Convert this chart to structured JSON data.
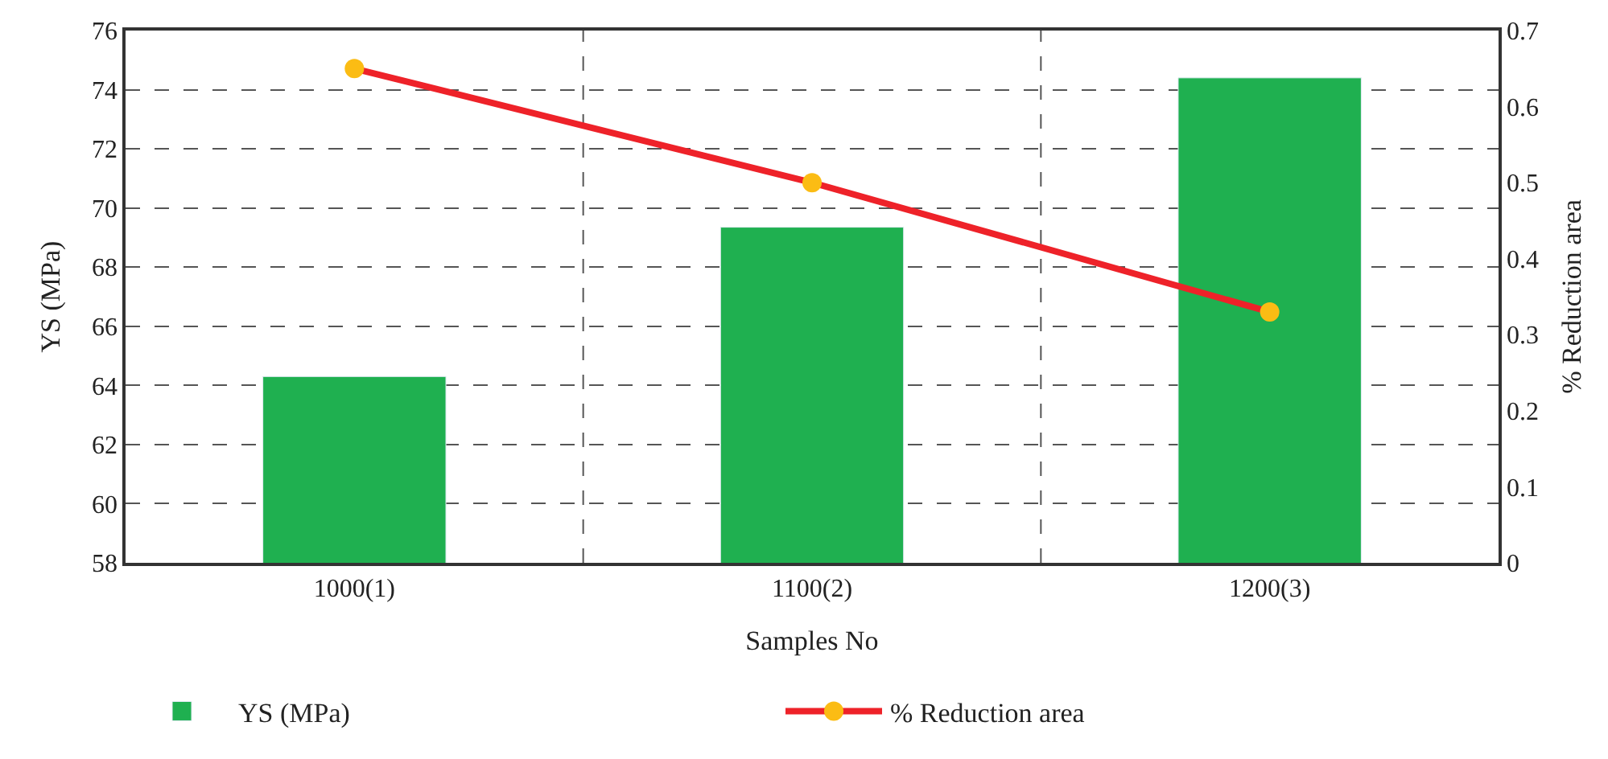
{
  "chart_data": {
    "type": "bar",
    "xlabel": "Samples No",
    "ylabel": "YS (MPa)",
    "y2label": "% Reduction area",
    "categories": [
      "1000(1)",
      "1100(2)",
      "1200(3)"
    ],
    "series": [
      {
        "name": "YS (MPa)",
        "color": "#1fb050",
        "values": [
          64.3,
          69.35,
          74.4
        ]
      },
      {
        "name": "% Reduction area",
        "type": "line",
        "axis": "y2",
        "color": "#ee2229",
        "marker": "circle",
        "values": [
          0.65,
          0.5,
          0.33
        ]
      }
    ],
    "ylim": [
      58,
      76
    ],
    "yticks": [
      58,
      60,
      62,
      64,
      66,
      68,
      70,
      72,
      74,
      76
    ],
    "y2lim": [
      0,
      0.7
    ],
    "y2ticks": [
      0,
      0.1,
      0.2,
      0.3,
      0.4,
      0.5,
      0.6,
      0.7
    ],
    "grid": true,
    "legend": "bottom"
  }
}
